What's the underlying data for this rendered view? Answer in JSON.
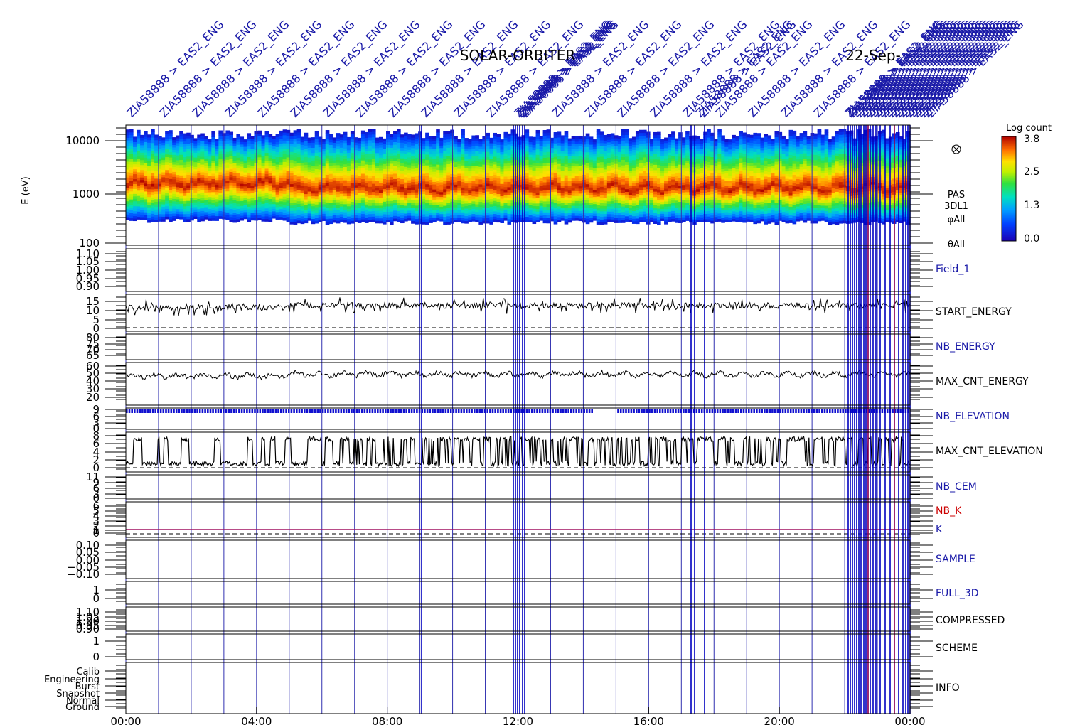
{
  "title": {
    "mission": "SOLAR-ORBITER",
    "date": "22-Sep-"
  },
  "event_label": "ZIA58888 > EAS2_ENG",
  "colorbar": {
    "label": "Log count",
    "ticks": [
      "3.8",
      "2.5",
      "1.3",
      "0.0"
    ]
  },
  "time_axis": {
    "ticks": [
      "00:00",
      "04:00",
      "08:00",
      "12:00",
      "16:00",
      "20:00",
      "00:00"
    ]
  },
  "colors": {
    "axis": "#000000",
    "event_line": "#0000c0",
    "label_blue": "#1a1aa8",
    "label_red": "#cc0000",
    "label_black": "#000000"
  },
  "chart_data": [
    {
      "type": "heatmap",
      "name": "PAS 3DL1",
      "ylabel": "E (eV)",
      "yscale": "log",
      "ylim": [
        100,
        15000
      ],
      "y_ticks": [
        "10000",
        "1000",
        "100"
      ],
      "side_labels": [
        "PAS",
        "3DL1",
        "φAll",
        "θAll"
      ],
      "colorscale": [
        0.0,
        3.8
      ]
    },
    {
      "type": "line",
      "name": "Field_1",
      "label_color": "blue",
      "y_ticks": [
        "1.10",
        "1.05",
        "1.00",
        "0.95",
        "0.90"
      ]
    },
    {
      "type": "line",
      "name": "START_ENERGY",
      "label_color": "black",
      "y_ticks": [
        "15",
        "10",
        "5",
        "0"
      ],
      "baseline": 10,
      "amplitude": 4
    },
    {
      "type": "line",
      "name": "NB_ENERGY",
      "label_color": "blue",
      "y_ticks": [
        "80",
        "75",
        "70",
        "65"
      ]
    },
    {
      "type": "line",
      "name": "MAX_CNT_ENERGY",
      "label_color": "black",
      "y_ticks": [
        "60",
        "50",
        "40",
        "30",
        "20"
      ],
      "baseline": 48,
      "amplitude": 5
    },
    {
      "type": "scatter",
      "name": "NB_ELEVATION",
      "label_color": "blue",
      "y_ticks": [
        "9",
        "6",
        "3",
        "0"
      ],
      "value": 9
    },
    {
      "type": "line",
      "name": "MAX_CNT_ELEVATION",
      "label_color": "black",
      "y_ticks": [
        "8",
        "6",
        "4",
        "2",
        "0"
      ],
      "levels": [
        1,
        7
      ]
    },
    {
      "type": "line",
      "name": "NB_CEM",
      "label_color": "blue",
      "y_ticks": [
        "11",
        "9",
        "6",
        "3",
        "0"
      ]
    },
    {
      "type": "line",
      "name": "NB_K",
      "label_color": "red",
      "y_ticks": [
        "6",
        "5",
        "4",
        "3",
        "2",
        "1",
        "0"
      ]
    },
    {
      "type": "line",
      "name": "K",
      "label_color": "blue",
      "value": 1
    },
    {
      "type": "line",
      "name": "SAMPLE",
      "label_color": "blue",
      "y_ticks": [
        "0.10",
        "0.05",
        "0.00",
        "−0.05",
        "−0.10"
      ]
    },
    {
      "type": "line",
      "name": "FULL_3D",
      "label_color": "blue",
      "y_ticks": [
        "1",
        "0"
      ]
    },
    {
      "type": "line",
      "name": "COMPRESSED",
      "label_color": "black",
      "y_ticks": [
        "1.10",
        "1.05",
        "1.00",
        "0.95",
        "0.90"
      ]
    },
    {
      "type": "line",
      "name": "SCHEME",
      "label_color": "black",
      "y_ticks": [
        "1",
        "0"
      ]
    },
    {
      "type": "line",
      "name": "INFO",
      "label_color": "black",
      "y_ticks": [
        "Calib",
        "Engineering",
        "Burst",
        "Snapshot",
        "Normal",
        "Ground"
      ]
    }
  ]
}
